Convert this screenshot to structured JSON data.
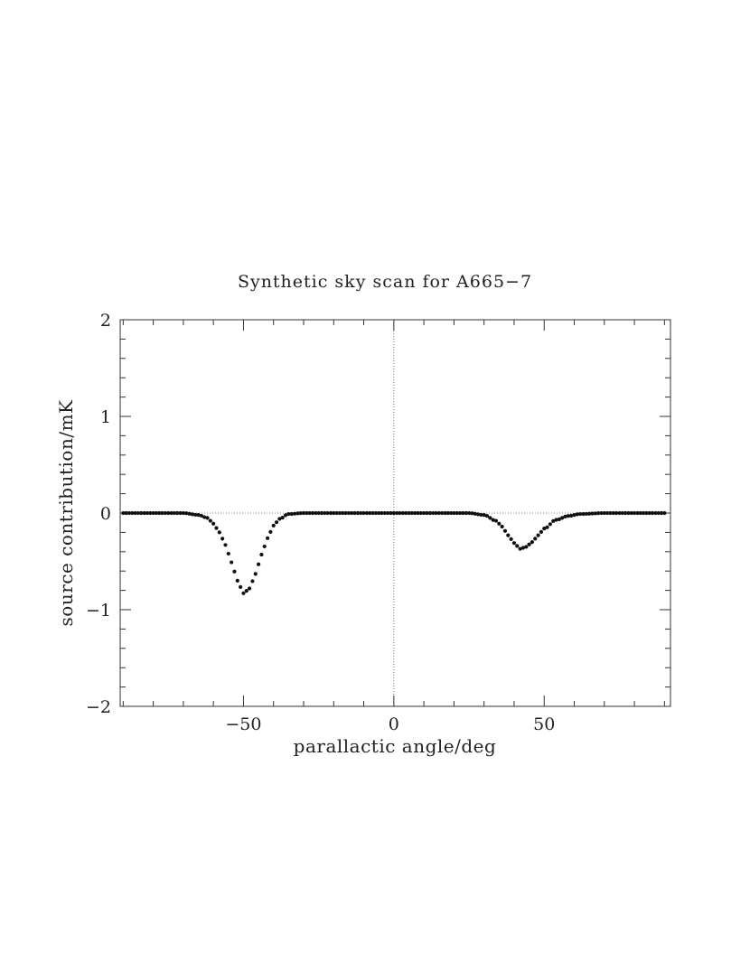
{
  "chart_data": {
    "type": "scatter",
    "title": "Synthetic sky scan for A665−7",
    "xlabel": "parallactic angle/deg",
    "ylabel": "source contribution/mK",
    "xlim": [
      -91,
      92
    ],
    "ylim": [
      -2,
      2
    ],
    "x_major_ticks": [
      -50,
      0,
      50
    ],
    "x_tick_labels": [
      "−50",
      "0",
      "50"
    ],
    "x_minor_step": 10,
    "y_major_ticks": [
      -2,
      -1,
      0,
      1,
      2
    ],
    "y_tick_labels": [
      "−2",
      "−1",
      "0",
      "1",
      "2"
    ],
    "y_minor_step": 0.2,
    "reference_lines": {
      "y": 0,
      "x": 0,
      "style": "dotted"
    },
    "grid": false,
    "legend": false,
    "marker_color": "#111111",
    "series": [
      {
        "x_start": -90,
        "x_end": 90,
        "x_step": 1,
        "description_components": [
          {
            "center": -50,
            "amplitude": -0.83,
            "sigma": 5.6
          },
          {
            "center": 42,
            "amplitude": -0.37,
            "sigma": 6.0
          }
        ],
        "values": [
          [
            -90,
            0
          ],
          [
            -80,
            0
          ],
          [
            -70,
            0
          ],
          [
            -65,
            -0.02
          ],
          [
            -62,
            -0.05
          ],
          [
            -60,
            -0.11
          ],
          [
            -58,
            -0.2
          ],
          [
            -56,
            -0.33
          ],
          [
            -54,
            -0.51
          ],
          [
            -52,
            -0.7
          ],
          [
            -50,
            -0.83
          ],
          [
            -48,
            -0.78
          ],
          [
            -46,
            -0.63
          ],
          [
            -44,
            -0.43
          ],
          [
            -42,
            -0.26
          ],
          [
            -40,
            -0.13
          ],
          [
            -38,
            -0.06
          ],
          [
            -35,
            -0.01
          ],
          [
            -30,
            0
          ],
          [
            0,
            0
          ],
          [
            25,
            0
          ],
          [
            30,
            -0.02
          ],
          [
            34,
            -0.08
          ],
          [
            36,
            -0.14
          ],
          [
            38,
            -0.23
          ],
          [
            40,
            -0.31
          ],
          [
            42,
            -0.37
          ],
          [
            44,
            -0.35
          ],
          [
            46,
            -0.3
          ],
          [
            48,
            -0.23
          ],
          [
            50,
            -0.16
          ],
          [
            54,
            -0.07
          ],
          [
            58,
            -0.03
          ],
          [
            62,
            -0.01
          ],
          [
            70,
            0
          ],
          [
            90,
            0
          ]
        ]
      }
    ]
  }
}
